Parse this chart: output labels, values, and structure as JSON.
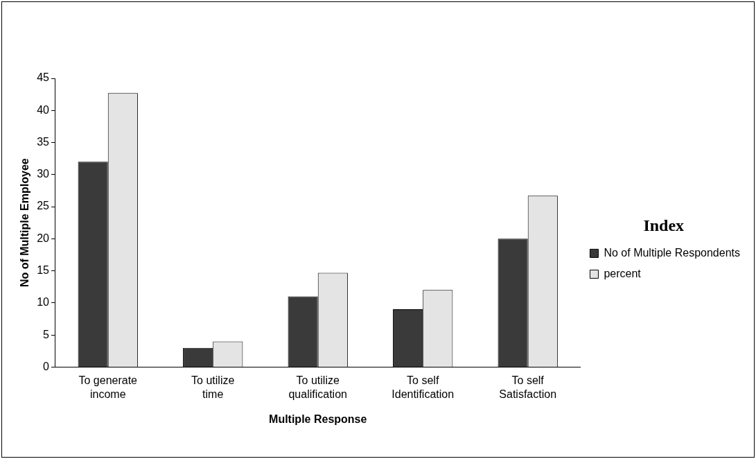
{
  "chart_data": {
    "type": "bar",
    "xlabel": "Multiple Response",
    "ylabel": "No of Multiple Employee",
    "legend_title": "Index",
    "legend": "right",
    "categories": [
      "To generate income",
      "To utilize time",
      "To utilize qualification",
      "To self Identification",
      "To self Satisfaction"
    ],
    "series": [
      {
        "name": "No of Multiple Respondents",
        "color": "#3a3a3a",
        "values": [
          32,
          3,
          11,
          9,
          20
        ]
      },
      {
        "name": "percent",
        "color": "#e4e4e4",
        "values": [
          42.7,
          4,
          14.7,
          12,
          26.7
        ]
      }
    ],
    "ylim": [
      0,
      45
    ],
    "yticks": [
      0,
      5,
      10,
      15,
      20,
      25,
      30,
      35,
      40,
      45
    ],
    "grid": false
  }
}
